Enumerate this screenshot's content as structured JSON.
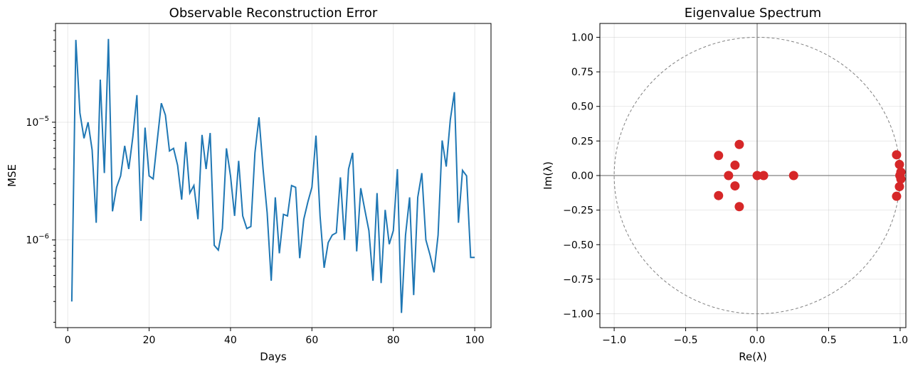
{
  "chart_data": [
    {
      "type": "line",
      "title": "Observable Reconstruction Error",
      "xlabel": "Days",
      "ylabel": "MSE",
      "yscale": "log",
      "xlim": [
        -3,
        104
      ],
      "ylim": [
        1.8e-07,
        6.9e-05
      ],
      "xticks": [
        0,
        20,
        40,
        60,
        80,
        100
      ],
      "xtick_labels": [
        "0",
        "20",
        "40",
        "60",
        "80",
        "100"
      ],
      "yticks": [
        1e-06,
        1e-05
      ],
      "ytick_labels": [
        "10−6",
        "10−5"
      ],
      "grid": true,
      "series": [
        {
          "color": "#1f77b4",
          "x": [
            1,
            2,
            3,
            4,
            5,
            6,
            7,
            8,
            9,
            10,
            11,
            12,
            13,
            14,
            15,
            16,
            17,
            18,
            19,
            20,
            21,
            22,
            23,
            24,
            25,
            26,
            27,
            28,
            29,
            30,
            31,
            32,
            33,
            34,
            35,
            36,
            37,
            38,
            39,
            40,
            41,
            42,
            43,
            44,
            45,
            46,
            47,
            48,
            49,
            50,
            51,
            52,
            53,
            54,
            55,
            56,
            57,
            58,
            59,
            60,
            61,
            62,
            63,
            64,
            65,
            66,
            67,
            68,
            69,
            70,
            71,
            72,
            73,
            74,
            75,
            76,
            77,
            78,
            79,
            80,
            81,
            82,
            83,
            84,
            85,
            86,
            87,
            88,
            89,
            90,
            91,
            92,
            93,
            94,
            95,
            96,
            97,
            98,
            99,
            100
          ],
          "y": [
            3e-07,
            5e-05,
            1.2e-05,
            7.3e-06,
            1e-05,
            5.8e-06,
            1.4e-06,
            2.3e-05,
            3.7e-06,
            5.1e-05,
            1.75e-06,
            2.8e-06,
            3.5e-06,
            6.3e-06,
            4e-06,
            7.5e-06,
            1.7e-05,
            1.45e-06,
            9e-06,
            3.5e-06,
            3.3e-06,
            7e-06,
            1.45e-05,
            1.15e-05,
            5.7e-06,
            6e-06,
            4.3e-06,
            2.2e-06,
            6.8e-06,
            2.5e-06,
            2.9e-06,
            1.5e-06,
            7.8e-06,
            4e-06,
            8.1e-06,
            9e-07,
            8.2e-07,
            1.25e-06,
            6e-06,
            3.5e-06,
            1.6e-06,
            4.7e-06,
            1.6e-06,
            1.25e-06,
            1.3e-06,
            5.5e-06,
            1.1e-05,
            4e-06,
            1.7e-06,
            4.5e-07,
            2.3e-06,
            7.7e-07,
            1.65e-06,
            1.6e-06,
            2.9e-06,
            2.8e-06,
            7e-07,
            1.5e-06,
            2.1e-06,
            2.8e-06,
            7.7e-06,
            1.6e-06,
            5.8e-07,
            9.5e-07,
            1.1e-06,
            1.15e-06,
            3.4e-06,
            1e-06,
            4e-06,
            5.5e-06,
            8e-07,
            2.75e-06,
            1.8e-06,
            1.2e-06,
            4.5e-07,
            2.5e-06,
            4.3e-07,
            1.8e-06,
            9.2e-07,
            1.2e-06,
            4e-06,
            2.4e-07,
            1.1e-06,
            2.3e-06,
            3.4e-07,
            2.3e-06,
            3.7e-06,
            1e-06,
            7.5e-07,
            5.3e-07,
            1.1e-06,
            7e-06,
            4.2e-06,
            1.05e-05,
            1.8e-05,
            1.4e-06,
            3.9e-06,
            3.5e-06,
            7.1e-07,
            7.1e-07
          ]
        }
      ]
    },
    {
      "type": "scatter",
      "title": "Eigenvalue Spectrum",
      "xlabel": "Re(λ)",
      "ylabel": "Im(λ)",
      "xlim": [
        -1.1,
        1.04
      ],
      "ylim": [
        -1.1,
        1.1
      ],
      "xticks": [
        -1.0,
        -0.5,
        0.0,
        0.5,
        1.0
      ],
      "xtick_labels": [
        "−1.0",
        "−0.5",
        "0.0",
        "0.5",
        "1.0"
      ],
      "yticks": [
        -1.0,
        -0.75,
        -0.5,
        -0.25,
        0.0,
        0.25,
        0.5,
        0.75,
        1.0
      ],
      "ytick_labels": [
        "−1.00",
        "−0.75",
        "−0.50",
        "−0.25",
        "0.00",
        "0.25",
        "0.50",
        "0.75",
        "1.00"
      ],
      "grid": true,
      "unit_circle": true,
      "point_color": "#d62728",
      "points": [
        {
          "re": -0.27,
          "im": 0.145
        },
        {
          "re": -0.27,
          "im": -0.145
        },
        {
          "re": -0.2,
          "im": 0.0
        },
        {
          "re": -0.155,
          "im": 0.075
        },
        {
          "re": -0.155,
          "im": -0.075
        },
        {
          "re": -0.125,
          "im": 0.225
        },
        {
          "re": -0.125,
          "im": -0.225
        },
        {
          "re": 0.0,
          "im": 0.0
        },
        {
          "re": 0.045,
          "im": 0.0
        },
        {
          "re": 0.255,
          "im": 0.0
        },
        {
          "re": 0.975,
          "im": 0.15
        },
        {
          "re": 0.975,
          "im": -0.15
        },
        {
          "re": 0.995,
          "im": 0.08
        },
        {
          "re": 0.995,
          "im": -0.08
        },
        {
          "re": 0.998,
          "im": 0.0
        },
        {
          "re": 1.005,
          "im": 0.025
        },
        {
          "re": 1.005,
          "im": -0.025
        }
      ]
    }
  ]
}
